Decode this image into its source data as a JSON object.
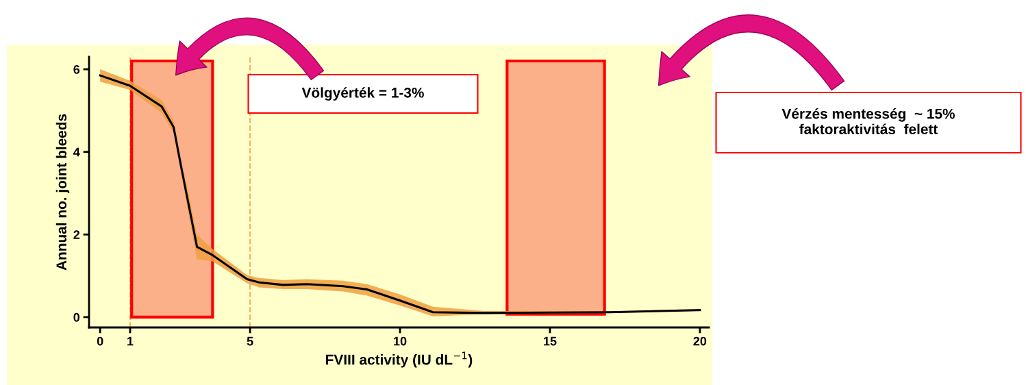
{
  "chart_data": {
    "type": "line",
    "xlabel": "FVIII activity (IU dL$^{−1}$)",
    "ylabel": "Annual no. joint bleeds",
    "x": [
      0,
      1,
      2.05,
      2.45,
      2.68,
      3.23,
      3.75,
      4.9,
      5.3,
      6.1,
      6.9,
      8.1,
      8.9,
      10,
      11.1,
      12.8,
      17,
      20
    ],
    "series": [
      {
        "color": "#000000",
        "values": [
          5.85,
          5.6,
          5.1,
          4.6,
          3.72,
          1.7,
          1.5,
          0.92,
          0.84,
          0.78,
          0.8,
          0.75,
          0.67,
          0.4,
          0.12,
          0.1,
          0.12,
          0.17
        ],
        "lower": [
          5.7,
          5.5,
          4.95,
          4.45,
          3.55,
          1.4,
          1.35,
          0.82,
          0.72,
          0.68,
          0.68,
          0.62,
          0.52,
          0.28,
          0.02,
          0.07,
          0.1,
          0.15
        ],
        "upper": [
          6.0,
          5.72,
          5.25,
          4.75,
          3.9,
          2.0,
          1.65,
          1.02,
          0.95,
          0.9,
          0.92,
          0.88,
          0.8,
          0.55,
          0.25,
          0.15,
          0.14,
          0.2
        ]
      }
    ],
    "xlim": [
      -0.37,
      20.3
    ],
    "ylim": [
      -0.25,
      6.3
    ],
    "xticks": [
      0,
      1,
      5,
      10,
      15,
      20
    ],
    "yticks": [
      0,
      2,
      4,
      6
    ],
    "grid": false,
    "marker": "none",
    "line_style": "solid",
    "ref_lines": [
      {
        "axis": "x",
        "value": 1,
        "color": "#f5b060",
        "line_style": "dashed"
      },
      {
        "axis": "x",
        "value": 5,
        "color": "#f5b060",
        "line_style": "dashed"
      }
    ],
    "bands": [
      {
        "axis": "x",
        "from": 1.05,
        "to": 3.75,
        "color": "#fbb08a"
      },
      {
        "axis": "x",
        "from": 13.57,
        "to": 16.82,
        "color": "#fbb08a"
      }
    ],
    "annotations": [
      "Völgyérték = 1-3%",
      "Vérzés mentesség  ~ 15%\nfaktoraktivitás  felett"
    ]
  }
}
